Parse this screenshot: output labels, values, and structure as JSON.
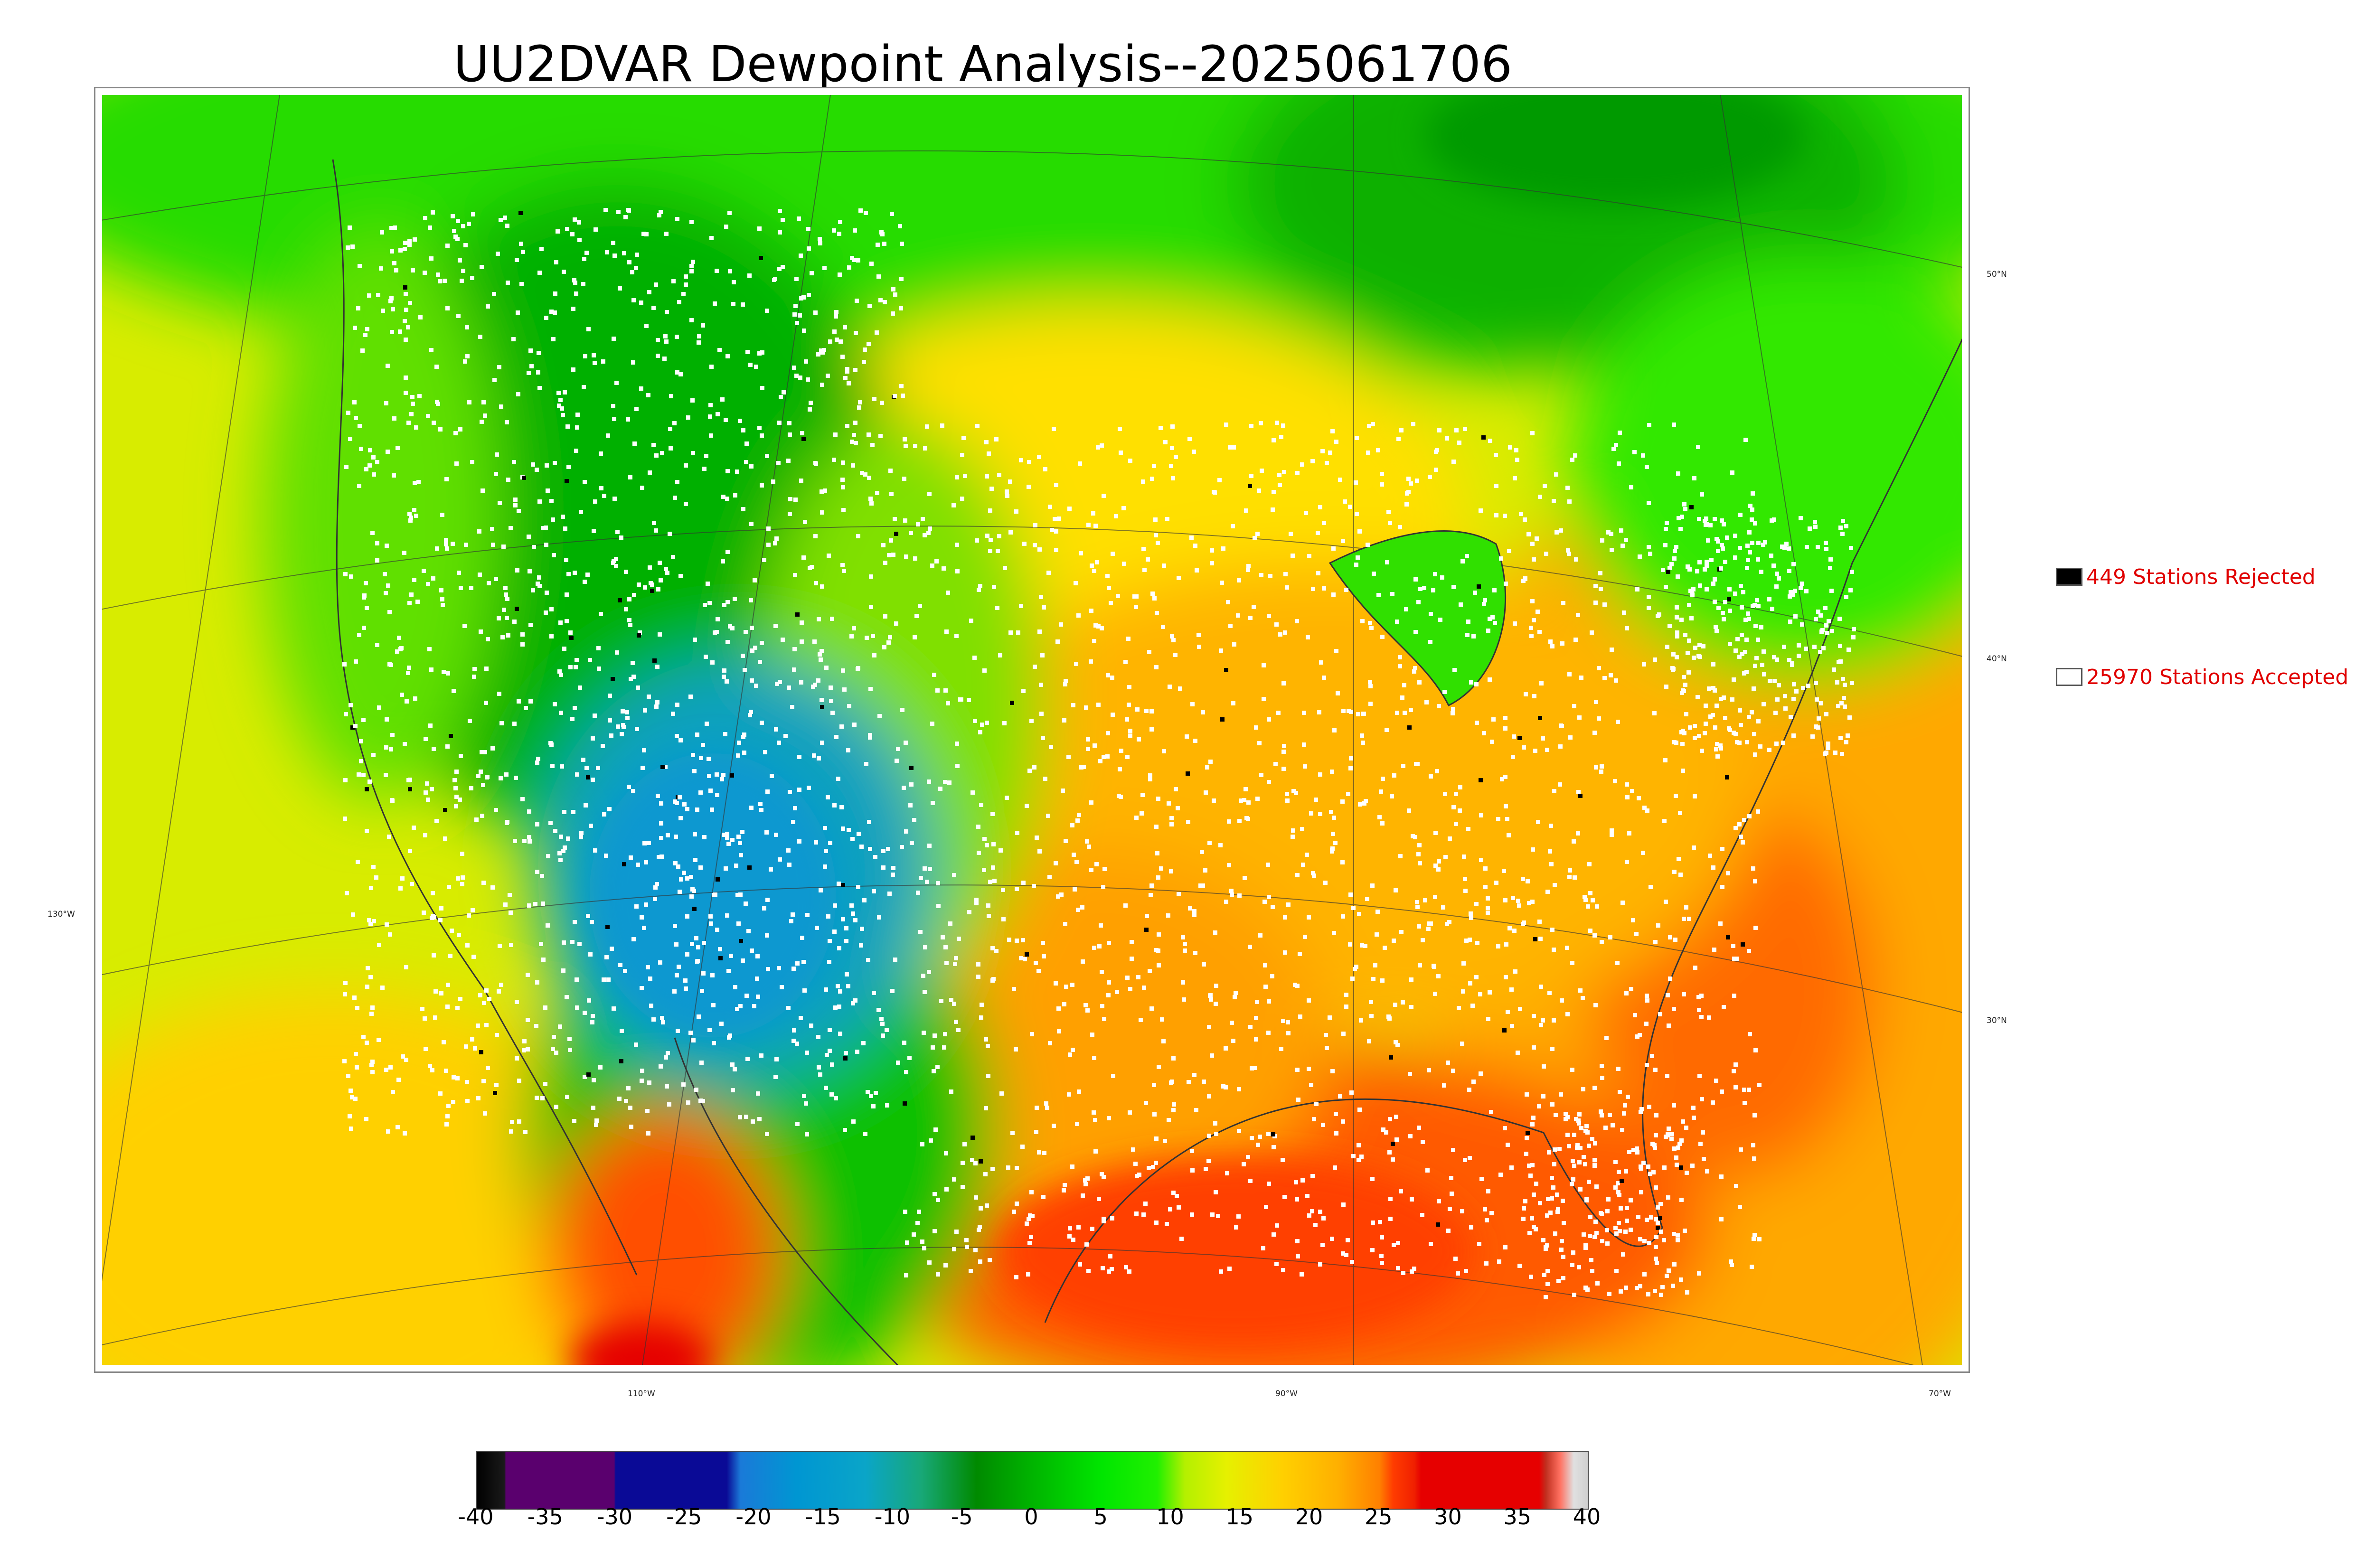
{
  "title": "UU2DVAR Dewpoint Analysis--2025061706",
  "legend": {
    "rejected": {
      "label": "449 Stations Rejected",
      "swatch_color": "#000000"
    },
    "accepted": {
      "label": "25970 Stations Accepted",
      "swatch_color": "#ffffff"
    }
  },
  "longitude_labels": [
    "130°W",
    "110°W",
    "90°W",
    "70°W"
  ],
  "latitude_labels": [
    "50°N",
    "40°N",
    "30°N"
  ],
  "colorbar": {
    "ticks": [
      "-40",
      "-35",
      "-30",
      "-25",
      "-20",
      "-15",
      "-10",
      "-5",
      "0",
      "5",
      "10",
      "15",
      "20",
      "25",
      "30",
      "35",
      "40"
    ],
    "range": [
      -40,
      40
    ],
    "stops": [
      {
        "v": -40,
        "color": "#000000"
      },
      {
        "v": -38,
        "color": "#1a1a1a"
      },
      {
        "v": -37.9,
        "color": "#5a006e"
      },
      {
        "v": -30.1,
        "color": "#5a006e"
      },
      {
        "v": -30,
        "color": "#0a0a96"
      },
      {
        "v": -22,
        "color": "#0a0a96"
      },
      {
        "v": -21,
        "color": "#1a7ad8"
      },
      {
        "v": -17,
        "color": "#0096d2"
      },
      {
        "v": -12,
        "color": "#0aa5c8"
      },
      {
        "v": -8,
        "color": "#18a878"
      },
      {
        "v": -4,
        "color": "#008a00"
      },
      {
        "v": 0,
        "color": "#00b400"
      },
      {
        "v": 5,
        "color": "#00e600"
      },
      {
        "v": 9,
        "color": "#20f000"
      },
      {
        "v": 11,
        "color": "#b4f000"
      },
      {
        "v": 14,
        "color": "#e6f000"
      },
      {
        "v": 18,
        "color": "#ffd000"
      },
      {
        "v": 22,
        "color": "#ffb000"
      },
      {
        "v": 25,
        "color": "#ff8000"
      },
      {
        "v": 26,
        "color": "#ff3c00"
      },
      {
        "v": 27.5,
        "color": "#f02000"
      },
      {
        "v": 28,
        "color": "#e60000"
      },
      {
        "v": 36.5,
        "color": "#e60000"
      },
      {
        "v": 37,
        "color": "#c03020"
      },
      {
        "v": 38,
        "color": "#ff7060"
      },
      {
        "v": 39,
        "color": "#e0e0e0"
      },
      {
        "v": 40,
        "color": "#d0d0d0"
      }
    ]
  },
  "map_colors": {
    "ocean_pacific": "#d2f000",
    "ocean_atlantic": "#ffa800",
    "gulf": "#ff4800",
    "canada_north": "#10c800",
    "canada_south": "#30e000",
    "great_basin": "#0aa0c0",
    "rockies": "#00a000",
    "great_plains": "#b8f000",
    "midwest": "#ffd000",
    "southeast": "#ffb000",
    "mexico_pacific": "#ff6a00"
  }
}
